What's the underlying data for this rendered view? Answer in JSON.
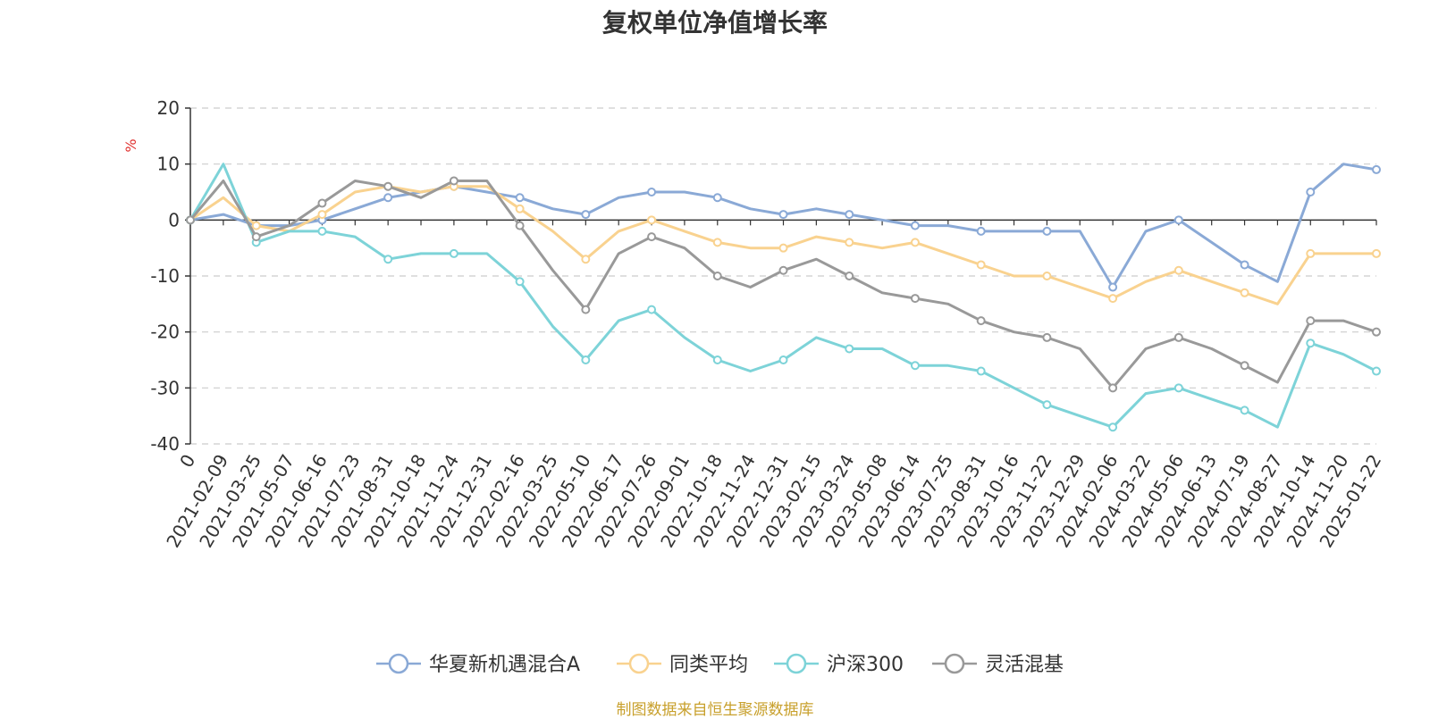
{
  "chart_data": {
    "type": "line",
    "title": "复权单位净值增长率",
    "ylabel": "%",
    "ylim": [
      -40,
      20
    ],
    "yticks": [
      20,
      10,
      0,
      -10,
      -20,
      -30,
      -40
    ],
    "grid": true,
    "legend_position": "bottom-center",
    "x": [
      "0",
      "2021-02-09",
      "2021-03-25",
      "2021-05-07",
      "2021-06-16",
      "2021-07-23",
      "2021-08-31",
      "2021-10-18",
      "2021-11-24",
      "2021-12-31",
      "2022-02-16",
      "2022-03-25",
      "2022-05-10",
      "2022-06-17",
      "2022-07-26",
      "2022-09-01",
      "2022-10-18",
      "2022-11-24",
      "2022-12-31",
      "2023-02-15",
      "2023-03-24",
      "2023-05-08",
      "2023-06-14",
      "2023-07-25",
      "2023-08-31",
      "2023-10-16",
      "2023-11-22",
      "2023-12-29",
      "2024-02-06",
      "2024-03-22",
      "2024-05-06",
      "2024-06-13",
      "2024-07-19",
      "2024-08-27",
      "2024-10-14",
      "2024-11-20",
      "2025-01-22"
    ],
    "series": [
      {
        "name": "华夏新机遇混合A",
        "color": "#8aa9d6",
        "values": [
          0,
          1,
          -1,
          -1,
          0,
          2,
          4,
          5,
          6,
          5,
          4,
          2,
          1,
          4,
          5,
          5,
          4,
          2,
          1,
          2,
          1,
          0,
          -1,
          -1,
          -2,
          -2,
          -2,
          -2,
          -12,
          -2,
          0,
          -4,
          -8,
          -11,
          5,
          10,
          9
        ]
      },
      {
        "name": "同类平均",
        "color": "#f9d28f",
        "values": [
          0,
          4,
          -1,
          -2,
          1,
          5,
          6,
          5,
          6,
          6,
          2,
          -2,
          -7,
          -2,
          0,
          -2,
          -4,
          -5,
          -5,
          -3,
          -4,
          -5,
          -4,
          -6,
          -8,
          -10,
          -10,
          -12,
          -14,
          -11,
          -9,
          -11,
          -13,
          -15,
          -6,
          -6,
          -6
        ]
      },
      {
        "name": "沪深300",
        "color": "#7dd3d8",
        "values": [
          0,
          10,
          -4,
          -2,
          -2,
          -3,
          -7,
          -6,
          -6,
          -6,
          -11,
          -19,
          -25,
          -18,
          -16,
          -21,
          -25,
          -27,
          -25,
          -21,
          -23,
          -23,
          -26,
          -26,
          -27,
          -30,
          -33,
          -35,
          -37,
          -31,
          -30,
          -32,
          -34,
          -37,
          -22,
          -24,
          -27
        ]
      },
      {
        "name": "灵活混基",
        "color": "#999999",
        "values": [
          0,
          7,
          -3,
          -1,
          3,
          7,
          6,
          4,
          7,
          7,
          -1,
          -9,
          -16,
          -6,
          -3,
          -5,
          -10,
          -12,
          -9,
          -7,
          -10,
          -13,
          -14,
          -15,
          -18,
          -20,
          -21,
          -23,
          -30,
          -23,
          -21,
          -23,
          -26,
          -29,
          -18,
          -18,
          -20
        ]
      }
    ]
  },
  "legend": {
    "items": [
      "华夏新机遇混合A",
      "同类平均",
      "沪深300",
      "灵活混基"
    ]
  },
  "footer": {
    "source": "制图数据来自恒生聚源数据库"
  },
  "colors": {
    "grid": "#cccccc",
    "axis": "#333333",
    "ylabel": "#e0312f",
    "source": "#c8a02c"
  }
}
